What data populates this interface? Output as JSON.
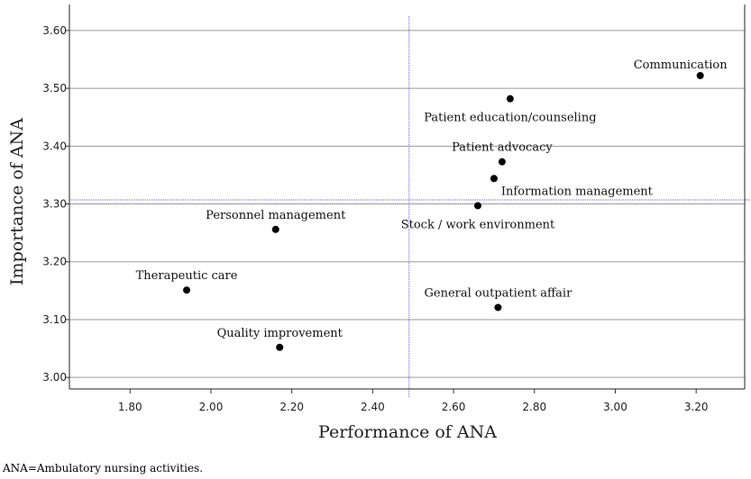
{
  "chart_data": {
    "type": "scatter",
    "xlabel": "Performance of ANA",
    "ylabel": "Importance of ANA",
    "xlim": [
      1.65,
      3.32
    ],
    "ylim": [
      2.98,
      3.645
    ],
    "xticks": [
      "1.80",
      "2.00",
      "2.20",
      "2.40",
      "2.60",
      "2.80",
      "3.00",
      "3.20"
    ],
    "yticks": [
      "3.00",
      "3.10",
      "3.20",
      "3.30",
      "3.40",
      "3.50",
      "3.60"
    ],
    "grid": "horizontal",
    "reference_lines": {
      "x": 2.49,
      "y": 3.307,
      "style": "dotted-blue"
    },
    "points": [
      {
        "label": "Communication",
        "x": 3.21,
        "y": 3.522,
        "label_pos": "above-left"
      },
      {
        "label": "Patient education/counseling",
        "x": 2.74,
        "y": 3.482,
        "label_pos": "below"
      },
      {
        "label": "Patient advocacy",
        "x": 2.72,
        "y": 3.373,
        "label_pos": "above"
      },
      {
        "label": "Information management",
        "x": 2.7,
        "y": 3.344,
        "label_pos": "below-right"
      },
      {
        "label": "Stock / work environment",
        "x": 2.66,
        "y": 3.297,
        "label_pos": "below"
      },
      {
        "label": "Personnel management",
        "x": 2.16,
        "y": 3.256,
        "label_pos": "above"
      },
      {
        "label": "Therapeutic care",
        "x": 1.94,
        "y": 3.151,
        "label_pos": "above"
      },
      {
        "label": "General outpatient affair",
        "x": 2.71,
        "y": 3.121,
        "label_pos": "above"
      },
      {
        "label": "Quality improvement",
        "x": 2.17,
        "y": 3.052,
        "label_pos": "above"
      }
    ]
  },
  "footnote": "ANA=Ambulatory nursing activities."
}
